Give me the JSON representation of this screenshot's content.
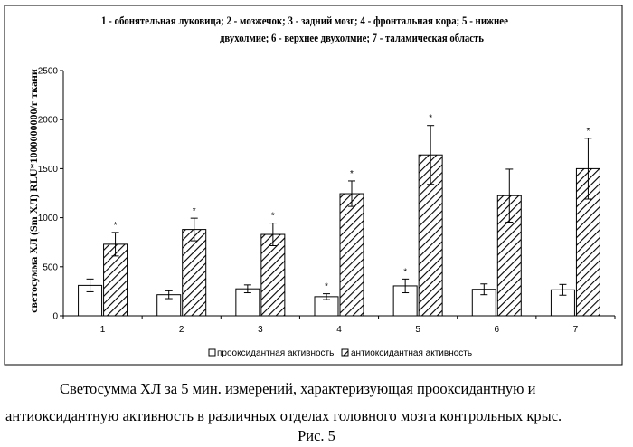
{
  "chart_data": {
    "type": "bar",
    "title": "1 - обонятельная луковица; 2 - мозжечок; 3 - задний мозг; 4 - фронтальная кора; 5 - нижнее двухолмие; 6 - верхнее двухолмие; 7 - таламическая область",
    "title_lines": [
      "1 - обонятельная луковица; 2 - мозжечок; 3 - задний мозг; 4 - фронтальная кора; 5 - нижнее",
      "двухолмие; 6 - верхнее двухолмие; 7 - таламическая область"
    ],
    "ylabel": "светосумма ХЛ (Sm ХЛ)   RLU*1000000000/г ткани",
    "xlabel": "",
    "categories": [
      "1",
      "2",
      "3",
      "4",
      "5",
      "6",
      "7"
    ],
    "ylim": [
      0,
      2500
    ],
    "yticks": [
      "0",
      "500",
      "1000",
      "1500",
      "2000",
      "2500"
    ],
    "grid": false,
    "legend_position": "bottom",
    "series": [
      {
        "name": "прооксидантная активность",
        "fill": "white",
        "values": [
          310,
          215,
          275,
          195,
          305,
          270,
          265
        ],
        "errors": [
          65,
          40,
          40,
          30,
          70,
          55,
          55
        ],
        "significant": [
          false,
          false,
          false,
          true,
          true,
          false,
          false
        ]
      },
      {
        "name": "антиоксидантная активность",
        "fill": "hatched",
        "values": [
          730,
          880,
          830,
          1245,
          1640,
          1225,
          1500
        ],
        "errors": [
          120,
          115,
          115,
          130,
          300,
          270,
          310
        ],
        "significant": [
          true,
          true,
          true,
          true,
          true,
          false,
          true
        ]
      }
    ],
    "significance_marker": "*"
  },
  "caption": {
    "line1": "Светосумма ХЛ за 5 мин. измерений, характеризующая прооксидантную и",
    "line2": "антиоксидантную активность в различных отделах головного мозга контрольных крыс.",
    "figure_label": "Рис.  5"
  }
}
